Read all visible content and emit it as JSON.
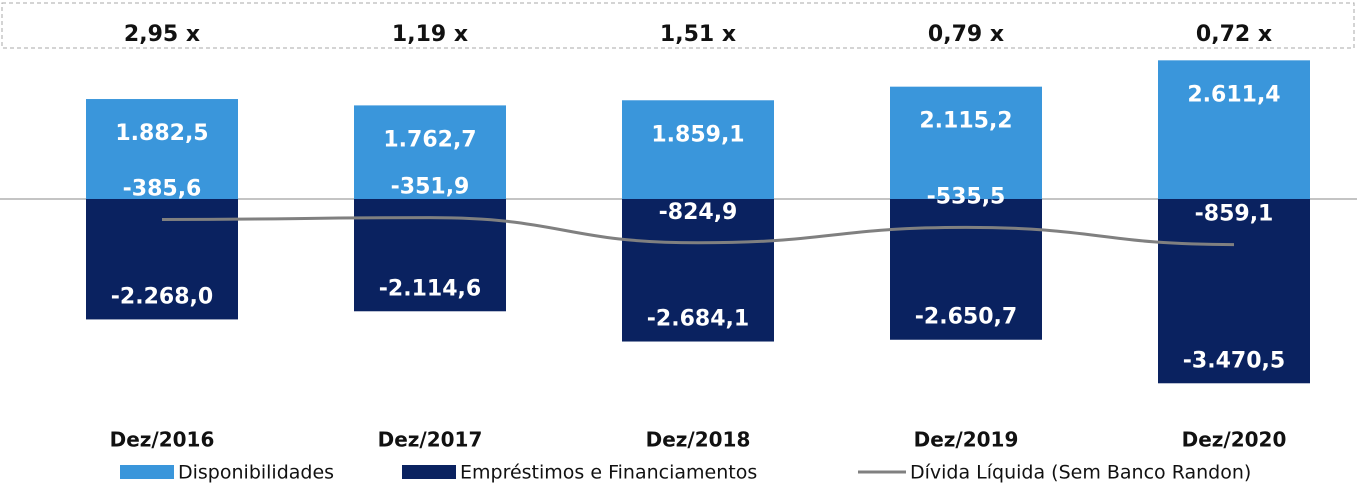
{
  "chart_data": {
    "type": "bar",
    "annotations": [
      "2,95 x",
      "1,19 x",
      "1,51 x",
      "0,79 x",
      "0,72 x"
    ],
    "categories": [
      "Dez/2016",
      "Dez/2017",
      "Dez/2018",
      "Dez/2019",
      "Dez/2020"
    ],
    "series": [
      {
        "name": "Disponibilidades",
        "type": "bar",
        "color": "#3a96db",
        "values": [
          1882.5,
          1762.7,
          1859.1,
          2115.2,
          2611.4
        ],
        "value_labels": [
          "1.882,5",
          "1.762,7",
          "1.859,1",
          "2.115,2",
          "2.611,4"
        ]
      },
      {
        "name": "Empréstimos e Financiamentos",
        "type": "bar",
        "color": "#0a2260",
        "values": [
          -2268.0,
          -2114.6,
          -2684.1,
          -2650.7,
          -3470.5
        ],
        "value_labels": [
          "-2.268,0",
          "-2.114,6",
          "-2.684,1",
          "-2.650,7",
          "-3.470,5"
        ]
      },
      {
        "name": "Dívida Líquida (Sem Banco Randon)",
        "type": "line",
        "color": "#808080",
        "values": [
          -385.6,
          -351.9,
          -824.9,
          -535.5,
          -859.1
        ],
        "value_labels": [
          "-385,6",
          "-351,9",
          "-824,9",
          "-535,5",
          "-859,1"
        ]
      }
    ],
    "ylim": [
      -3710,
      2900
    ]
  }
}
